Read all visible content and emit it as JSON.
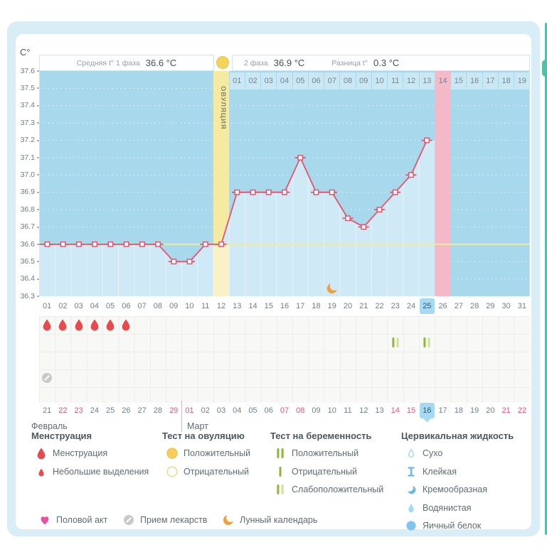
{
  "header": {
    "unit": "C°",
    "phase1_label": "Средняя t° 1 фаза",
    "phase1_value": "36.6 °C",
    "phase2_label": "2 фаза",
    "phase2_value": "36.9 °C",
    "diff_label": "Разница t°",
    "diff_value": "0.3 °C",
    "ovulation_label": "ОВУЛЯЦИЯ"
  },
  "chart_data": {
    "type": "line",
    "unit": "C°",
    "days": [
      "01",
      "02",
      "03",
      "04",
      "05",
      "06",
      "07",
      "08",
      "09",
      "10",
      "11",
      "12",
      "13",
      "14",
      "15",
      "16",
      "17",
      "18",
      "19",
      "20",
      "21",
      "22",
      "23",
      "24",
      "25",
      "26",
      "27",
      "28",
      "29",
      "30",
      "31"
    ],
    "temps": [
      36.6,
      36.6,
      36.6,
      36.6,
      36.6,
      36.6,
      36.6,
      36.6,
      36.5,
      36.5,
      36.6,
      36.6,
      36.9,
      36.9,
      36.9,
      36.9,
      37.1,
      36.9,
      36.9,
      36.75,
      36.7,
      36.8,
      36.9,
      37.0,
      37.2,
      null,
      null,
      null,
      null,
      null,
      null
    ],
    "ylim": [
      36.3,
      37.6
    ],
    "yticks": [
      37.6,
      37.5,
      37.4,
      37.3,
      37.2,
      37.1,
      37.0,
      36.9,
      36.8,
      36.7,
      36.6,
      36.5,
      36.4,
      36.3
    ],
    "cover_line": 36.6,
    "avg_phase1": 36.6,
    "avg_phase2": 36.9,
    "diff": 0.3,
    "ovulation_day": 12,
    "expected_period_day": 26,
    "selected_day": 25,
    "lunar_day": 19,
    "phase2_day_labels": [
      "01",
      "02",
      "03",
      "04",
      "05",
      "06",
      "07",
      "08",
      "09",
      "10",
      "11",
      "12",
      "13",
      "14",
      "15",
      "16",
      "17",
      "18",
      "19"
    ],
    "phase2_highlight_label": "14",
    "grid": "dotted-white-horizontal"
  },
  "events": {
    "menstruation_days": [
      1,
      2,
      3,
      4,
      5,
      6
    ],
    "pregnancy_test_weak_positive_days": [
      23,
      25
    ],
    "medication_days": [
      1
    ]
  },
  "calendar": {
    "dates": [
      "21",
      "22",
      "23",
      "24",
      "25",
      "26",
      "27",
      "28",
      "29",
      "01",
      "02",
      "03",
      "04",
      "05",
      "06",
      "07",
      "08",
      "09",
      "10",
      "11",
      "12",
      "13",
      "14",
      "15",
      "16",
      "17",
      "18",
      "19",
      "20",
      "21",
      "22"
    ],
    "red_indices": [
      1,
      2,
      8,
      9,
      15,
      16,
      22,
      23,
      29,
      30
    ],
    "today_index": 24,
    "divider_after_index": 8,
    "months": [
      "Февраль",
      "Март"
    ]
  },
  "legend": {
    "sections": [
      {
        "title": "Менструация",
        "items": [
          {
            "icon": "drop-big",
            "label": "Менструация"
          },
          {
            "icon": "drop-small",
            "label": "Небольшие выделения"
          }
        ]
      },
      {
        "title": "Тест на овуляцию",
        "items": [
          {
            "icon": "circle-filled",
            "label": "Положительный"
          },
          {
            "icon": "circle-outline",
            "label": "Отрицательный"
          }
        ]
      },
      {
        "title": "Тест на беременность",
        "items": [
          {
            "icon": "bars-positive",
            "label": "Положительный"
          },
          {
            "icon": "bar-negative",
            "label": "Отрицательный"
          },
          {
            "icon": "bars-weak",
            "label": "Слабоположительный"
          }
        ]
      },
      {
        "title": "Цервикальная жидкость",
        "items": [
          {
            "icon": "drop-outline",
            "label": "Сухо"
          },
          {
            "icon": "sticky",
            "label": "Клейкая"
          },
          {
            "icon": "creamy",
            "label": "Кремообразная"
          },
          {
            "icon": "drop-watery",
            "label": "Водянистая"
          },
          {
            "icon": "eggwhite",
            "label": "Яичный белок"
          }
        ]
      }
    ],
    "footer": [
      {
        "icon": "heart",
        "label": "Половой акт"
      },
      {
        "icon": "pill",
        "label": "Прием лекарств"
      },
      {
        "icon": "moon",
        "label": "Лунный календарь"
      }
    ]
  },
  "colors": {
    "panel_bg": "#d9edf7",
    "chart_bg": "#a7d8ec",
    "fill": "#cfeaf6",
    "ovulation_band": "#f6e9a2",
    "ovulation_band_fill": "#faf2c6",
    "period_band": "#f3b9c8",
    "line": "#e2556e",
    "cover_line": "#ecea9b",
    "highlight": "#a7daf2",
    "red_date": "#e8547a",
    "drop": "#e84b4f",
    "test_bar_dark": "#8cb832",
    "test_bar_light": "#cfe09e",
    "cervical_blue": "#67b7e8",
    "moon": "#f0a13e",
    "heart": "#ec4fa1",
    "pill": "#c9c9c9",
    "side_tab": "#58bda6"
  }
}
